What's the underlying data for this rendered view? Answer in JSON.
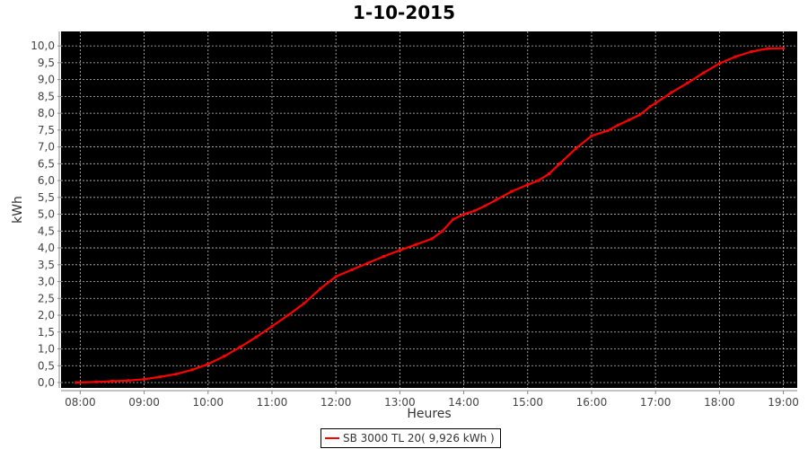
{
  "chart_data": {
    "type": "line",
    "title": "1-10-2015",
    "xlabel": "Heures",
    "ylabel": "kWh",
    "xlim": [
      "07:42",
      "19:13"
    ],
    "ylim": [
      -0.16,
      10.43
    ],
    "x_ticks": [
      "08:00",
      "09:00",
      "10:00",
      "11:00",
      "12:00",
      "13:00",
      "14:00",
      "15:00",
      "16:00",
      "17:00",
      "18:00",
      "19:00"
    ],
    "y_ticks": [
      "0,0",
      "0,5",
      "1,0",
      "1,5",
      "2,0",
      "2,5",
      "3,0",
      "3,5",
      "4,0",
      "4,5",
      "5,0",
      "5,5",
      "6,0",
      "6,5",
      "7,0",
      "7,5",
      "8,0",
      "8,5",
      "9,0",
      "9,5",
      "10,0"
    ],
    "grid": true,
    "background": "#000000",
    "gridColor": "#c0c0c0",
    "legend_position": "bottom",
    "series": [
      {
        "name": "SB 3000 TL 20( 9,926 kWh )",
        "color": "#ff0000",
        "x": [
          "07:56",
          "08:15",
          "08:30",
          "08:45",
          "09:00",
          "09:15",
          "09:30",
          "09:45",
          "10:00",
          "10:15",
          "10:30",
          "10:45",
          "11:00",
          "11:15",
          "11:30",
          "11:45",
          "12:00",
          "12:15",
          "12:30",
          "12:45",
          "13:00",
          "13:15",
          "13:30",
          "13:40",
          "13:50",
          "14:00",
          "14:10",
          "14:20",
          "14:30",
          "14:45",
          "15:00",
          "15:10",
          "15:20",
          "15:30",
          "15:45",
          "16:00",
          "16:15",
          "16:25",
          "16:35",
          "16:45",
          "16:55",
          "17:00",
          "17:15",
          "17:30",
          "17:45",
          "18:00",
          "18:15",
          "18:30",
          "18:45",
          "19:00"
        ],
        "y": [
          0.0,
          0.02,
          0.04,
          0.06,
          0.1,
          0.17,
          0.25,
          0.38,
          0.55,
          0.78,
          1.05,
          1.35,
          1.67,
          2.0,
          2.35,
          2.78,
          3.15,
          3.35,
          3.55,
          3.75,
          3.93,
          4.1,
          4.27,
          4.5,
          4.85,
          5.0,
          5.1,
          5.25,
          5.42,
          5.68,
          5.88,
          6.0,
          6.2,
          6.5,
          6.95,
          7.33,
          7.48,
          7.65,
          7.8,
          7.95,
          8.2,
          8.3,
          8.62,
          8.9,
          9.2,
          9.48,
          9.68,
          9.83,
          9.92,
          9.93
        ]
      }
    ]
  }
}
